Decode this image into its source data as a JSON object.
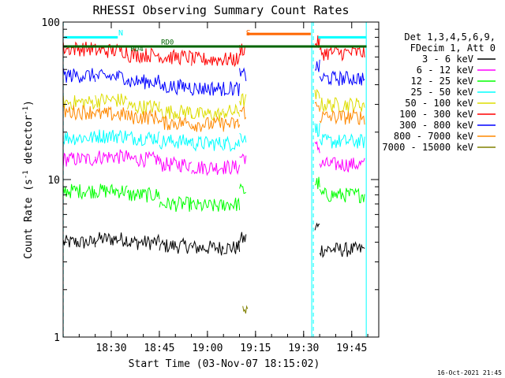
{
  "chart_data": {
    "type": "line",
    "title": "RHESSI Observing Summary Count Rates",
    "xlabel": "Start Time (03-Nov-07 18:15:02)",
    "ylabel": "Count Rate (s⁻¹ detector⁻¹)",
    "ylabel_main": "Count Rate (s",
    "ylabel_sup1": "-1",
    "ylabel_mid": " detector",
    "ylabel_sup2": "-1",
    "ylabel_end": ")",
    "y_scale": "log",
    "ylim": [
      1,
      100
    ],
    "xlim_minutes": [
      -0.04,
      98.4
    ],
    "x_ticks": [
      {
        "label": "18:30",
        "t": 14.97
      },
      {
        "label": "18:45",
        "t": 29.97
      },
      {
        "label": "19:00",
        "t": 44.97
      },
      {
        "label": "19:15",
        "t": 59.97
      },
      {
        "label": "19:30",
        "t": 74.97
      },
      {
        "label": "19:45",
        "t": 89.97
      }
    ],
    "y_ticks": [
      {
        "label": "1",
        "v": 1
      },
      {
        "label": "10",
        "v": 10
      },
      {
        "label": "100",
        "v": 100
      }
    ],
    "legend_header": [
      "Det 1,3,4,5,6,9,",
      "FDecim 1, Att 0"
    ],
    "legend_position": "right",
    "footer_timestamp": "16-Oct-2021 21:45",
    "night_intervals": [
      [
        -0.04,
        0.0
      ],
      [
        77.5,
        78.0
      ],
      [
        94.5,
        98.4
      ]
    ],
    "saa_markers": [
      {
        "label": "N",
        "t": 17.2
      },
      {
        "label": "S",
        "t": 57.0
      }
    ],
    "flag_bars": [
      {
        "color": "#00ffff",
        "t0": 0.3,
        "t1": 17.0,
        "value": 80
      },
      {
        "color": "#00ffff",
        "t0": 79.5,
        "t1": 94.4,
        "value": 80
      },
      {
        "color": "#ff6600",
        "t0": 57.2,
        "t1": 77.2,
        "value": 84
      },
      {
        "color": "#006400",
        "t0": 0.0,
        "t1": 94.6,
        "value": 70
      }
    ],
    "flag_labels": [
      {
        "label": "RD0",
        "t": 30.5,
        "value": 72
      },
      {
        "label": "RD4",
        "t": 21.0,
        "value": 65.5
      }
    ],
    "gaps": [
      [
        57.6,
        77.2
      ]
    ],
    "series": [
      {
        "name": "3 - 6 keV",
        "color": "#000000",
        "levels": [
          [
            0,
            10,
            4.0
          ],
          [
            10,
            20,
            4.2
          ],
          [
            20,
            30,
            4.0
          ],
          [
            30,
            40,
            3.8
          ],
          [
            40,
            50,
            3.7
          ],
          [
            50,
            55,
            3.7
          ],
          [
            55,
            57,
            4.2
          ],
          [
            78.5,
            80,
            5.0
          ],
          [
            80,
            94,
            3.6
          ]
        ]
      },
      {
        "name": "6 - 12 keV",
        "color": "#ff00ff",
        "levels": [
          [
            0,
            10,
            13.5
          ],
          [
            10,
            20,
            14
          ],
          [
            20,
            30,
            13.5
          ],
          [
            30,
            40,
            12.5
          ],
          [
            40,
            50,
            12.0
          ],
          [
            50,
            55,
            12.0
          ],
          [
            55,
            57,
            14
          ],
          [
            78.5,
            80,
            16
          ],
          [
            80,
            94,
            12.5
          ]
        ]
      },
      {
        "name": "12 - 25 keV",
        "color": "#00ff00",
        "levels": [
          [
            0,
            10,
            8.5
          ],
          [
            10,
            20,
            8.5
          ],
          [
            20,
            30,
            8.0
          ],
          [
            30,
            40,
            7.0
          ],
          [
            40,
            50,
            6.8
          ],
          [
            50,
            55,
            7.0
          ],
          [
            55,
            57,
            8.5
          ],
          [
            78.5,
            80,
            9.5
          ],
          [
            80,
            94,
            8.0
          ]
        ]
      },
      {
        "name": "25 - 50 keV",
        "color": "#00ffff",
        "levels": [
          [
            0,
            10,
            18.5
          ],
          [
            10,
            20,
            19
          ],
          [
            20,
            30,
            18.5
          ],
          [
            30,
            40,
            17.5
          ],
          [
            40,
            50,
            17.0
          ],
          [
            50,
            55,
            17.0
          ],
          [
            55,
            57,
            19
          ],
          [
            78.5,
            80,
            21
          ],
          [
            80,
            94,
            17.5
          ]
        ]
      },
      {
        "name": "50 - 100 keV",
        "color": "#dddd00",
        "levels": [
          [
            0,
            10,
            31
          ],
          [
            10,
            20,
            32
          ],
          [
            20,
            30,
            29
          ],
          [
            30,
            40,
            27
          ],
          [
            40,
            50,
            26
          ],
          [
            50,
            55,
            27
          ],
          [
            55,
            57,
            32
          ],
          [
            78.5,
            80,
            34
          ],
          [
            80,
            94,
            30
          ]
        ]
      },
      {
        "name": "100 - 300 keV",
        "color": "#ff0000",
        "levels": [
          [
            0,
            10,
            68
          ],
          [
            10,
            20,
            66
          ],
          [
            20,
            30,
            62
          ],
          [
            30,
            40,
            60
          ],
          [
            40,
            50,
            58
          ],
          [
            50,
            55,
            58
          ],
          [
            55,
            57,
            68
          ],
          [
            78.5,
            80,
            74
          ],
          [
            80,
            94,
            64
          ]
        ]
      },
      {
        "name": "300 - 800 keV",
        "color": "#0000ff",
        "levels": [
          [
            0,
            10,
            46
          ],
          [
            10,
            20,
            45
          ],
          [
            20,
            30,
            42
          ],
          [
            30,
            40,
            39
          ],
          [
            40,
            50,
            38
          ],
          [
            50,
            55,
            38
          ],
          [
            55,
            57,
            46
          ],
          [
            78.5,
            80,
            52
          ],
          [
            80,
            94,
            44
          ]
        ]
      },
      {
        "name": "800 - 7000 keV",
        "color": "#ff8800",
        "levels": [
          [
            0,
            10,
            27
          ],
          [
            10,
            20,
            26
          ],
          [
            20,
            30,
            25
          ],
          [
            30,
            40,
            23
          ],
          [
            40,
            50,
            22.5
          ],
          [
            50,
            55,
            22.5
          ],
          [
            55,
            57,
            27
          ],
          [
            78.5,
            80,
            29
          ],
          [
            80,
            94,
            25
          ]
        ]
      },
      {
        "name": "7000 - 15000 keV",
        "color": "#808000",
        "levels": [
          [
            56,
            57.5,
            1.5
          ]
        ]
      }
    ]
  }
}
